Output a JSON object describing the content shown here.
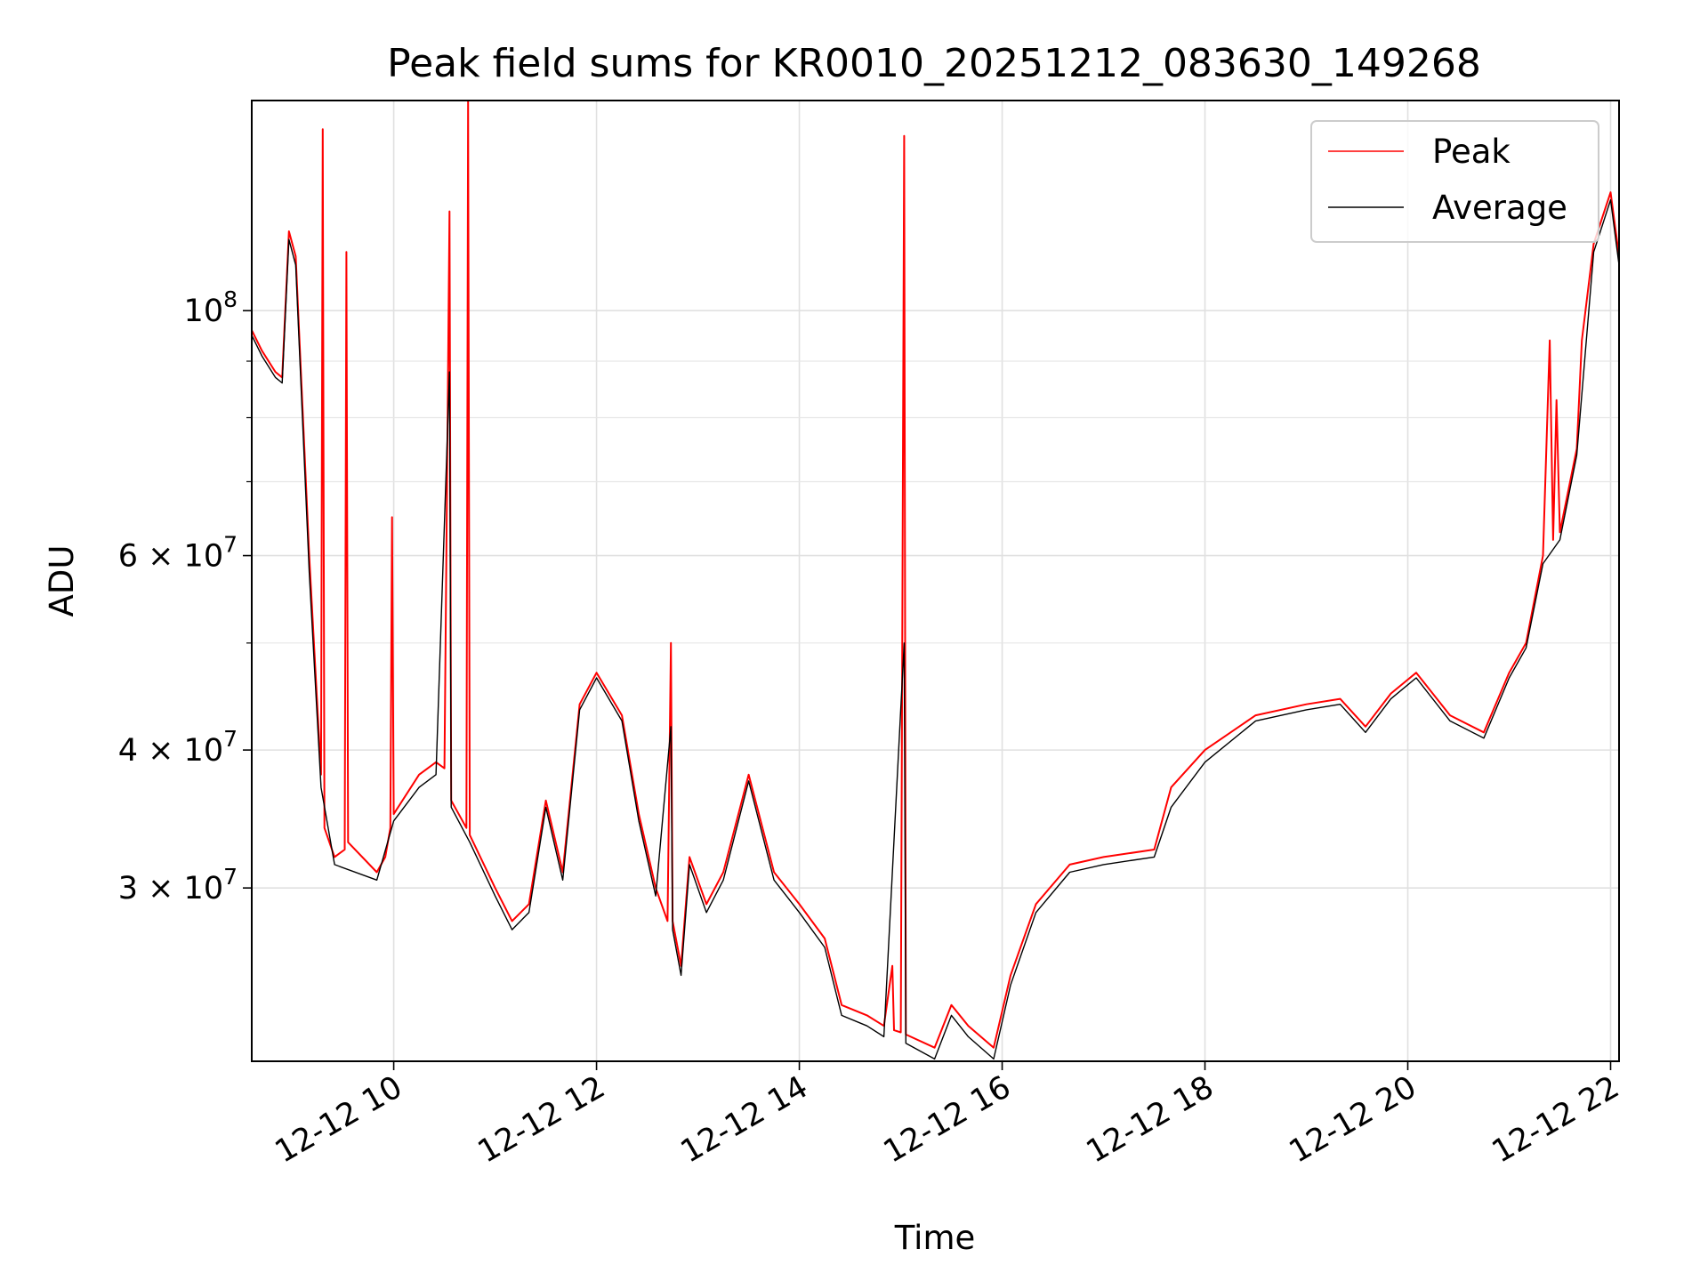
{
  "chart_data": {
    "type": "line",
    "title": "Peak field sums for KR0010_20251212_083630_149268",
    "xlabel": "Time",
    "ylabel": "ADU",
    "y_scale": "log",
    "ylim": [
      20900000,
      155000000
    ],
    "xlim": [
      "2025-12-12 08:36",
      "2025-12-12 22:05"
    ],
    "grid": true,
    "legend": "top-right",
    "x_tick_labels": [
      "12-12 10",
      "12-12 12",
      "12-12 14",
      "12-12 16",
      "12-12 18",
      "12-12 20",
      "12-12 22"
    ],
    "x_ticks": [
      "2025-12-12 10:00",
      "2025-12-12 12:00",
      "2025-12-12 14:00",
      "2025-12-12 16:00",
      "2025-12-12 18:00",
      "2025-12-12 20:00",
      "2025-12-12 22:00"
    ],
    "y_ticks": [
      {
        "value": 30000000,
        "label": "3 × 10",
        "exp": "7"
      },
      {
        "value": 40000000,
        "label": "4 × 10",
        "exp": "7"
      },
      {
        "value": 60000000,
        "label": "6 × 10",
        "exp": "7"
      },
      {
        "value": 100000000,
        "label": "10",
        "exp": "8"
      }
    ],
    "y_minor_ticks": [
      50000000,
      70000000,
      80000000,
      90000000
    ],
    "series": [
      {
        "name": "Peak",
        "color": "#ff0000",
        "points": [
          [
            "2025-12-12 08:36",
            96000000
          ],
          [
            "2025-12-12 08:42",
            92000000
          ],
          [
            "2025-12-12 08:50",
            88000000
          ],
          [
            "2025-12-12 08:54",
            87000000
          ],
          [
            "2025-12-12 08:58",
            118000000
          ],
          [
            "2025-12-12 09:02",
            112000000
          ],
          [
            "2025-12-12 09:10",
            60000000
          ],
          [
            "2025-12-12 09:17",
            38000000
          ],
          [
            "2025-12-12 09:18",
            146000000
          ],
          [
            "2025-12-12 09:19",
            34000000
          ],
          [
            "2025-12-12 09:25",
            32000000
          ],
          [
            "2025-12-12 09:31",
            32500000
          ],
          [
            "2025-12-12 09:32",
            113000000
          ],
          [
            "2025-12-12 09:33",
            33000000
          ],
          [
            "2025-12-12 09:50",
            31000000
          ],
          [
            "2025-12-12 09:55",
            32000000
          ],
          [
            "2025-12-12 09:58",
            34000000
          ],
          [
            "2025-12-12 09:59",
            65000000
          ],
          [
            "2025-12-12 10:00",
            35000000
          ],
          [
            "2025-12-12 10:15",
            38000000
          ],
          [
            "2025-12-12 10:25",
            39000000
          ],
          [
            "2025-12-12 10:30",
            38500000
          ],
          [
            "2025-12-12 10:33",
            123000000
          ],
          [
            "2025-12-12 10:34",
            36000000
          ],
          [
            "2025-12-12 10:43",
            34000000
          ],
          [
            "2025-12-12 10:44",
            155000000
          ],
          [
            "2025-12-12 10:45",
            33500000
          ],
          [
            "2025-12-12 11:00",
            30000000
          ],
          [
            "2025-12-12 11:10",
            28000000
          ],
          [
            "2025-12-12 11:20",
            29000000
          ],
          [
            "2025-12-12 11:30",
            36000000
          ],
          [
            "2025-12-12 11:40",
            31000000
          ],
          [
            "2025-12-12 11:50",
            44000000
          ],
          [
            "2025-12-12 12:00",
            47000000
          ],
          [
            "2025-12-12 12:15",
            43000000
          ],
          [
            "2025-12-12 12:25",
            35000000
          ],
          [
            "2025-12-12 12:35",
            30000000
          ],
          [
            "2025-12-12 12:42",
            28000000
          ],
          [
            "2025-12-12 12:44",
            50000000
          ],
          [
            "2025-12-12 12:45",
            28000000
          ],
          [
            "2025-12-12 12:50",
            25500000
          ],
          [
            "2025-12-12 12:55",
            32000000
          ],
          [
            "2025-12-12 13:05",
            29000000
          ],
          [
            "2025-12-12 13:15",
            31000000
          ],
          [
            "2025-12-12 13:30",
            38000000
          ],
          [
            "2025-12-12 13:45",
            31000000
          ],
          [
            "2025-12-12 14:00",
            29000000
          ],
          [
            "2025-12-12 14:15",
            27000000
          ],
          [
            "2025-12-12 14:25",
            23500000
          ],
          [
            "2025-12-12 14:40",
            23000000
          ],
          [
            "2025-12-12 14:50",
            22500000
          ],
          [
            "2025-12-12 14:55",
            25500000
          ],
          [
            "2025-12-12 14:56",
            22300000
          ],
          [
            "2025-12-12 15:00",
            22200000
          ],
          [
            "2025-12-12 15:02",
            144000000
          ],
          [
            "2025-12-12 15:03",
            22100000
          ],
          [
            "2025-12-12 15:20",
            21500000
          ],
          [
            "2025-12-12 15:30",
            23500000
          ],
          [
            "2025-12-12 15:40",
            22500000
          ],
          [
            "2025-12-12 15:55",
            21500000
          ],
          [
            "2025-12-12 16:05",
            25000000
          ],
          [
            "2025-12-12 16:20",
            29000000
          ],
          [
            "2025-12-12 16:40",
            31500000
          ],
          [
            "2025-12-12 17:00",
            32000000
          ],
          [
            "2025-12-12 17:30",
            32500000
          ],
          [
            "2025-12-12 17:40",
            37000000
          ],
          [
            "2025-12-12 18:00",
            40000000
          ],
          [
            "2025-12-12 18:30",
            43000000
          ],
          [
            "2025-12-12 19:00",
            44000000
          ],
          [
            "2025-12-12 19:20",
            44500000
          ],
          [
            "2025-12-12 19:35",
            42000000
          ],
          [
            "2025-12-12 19:50",
            45000000
          ],
          [
            "2025-12-12 20:05",
            47000000
          ],
          [
            "2025-12-12 20:25",
            43000000
          ],
          [
            "2025-12-12 20:45",
            41500000
          ],
          [
            "2025-12-12 21:00",
            47000000
          ],
          [
            "2025-12-12 21:10",
            50000000
          ],
          [
            "2025-12-12 21:20",
            60000000
          ],
          [
            "2025-12-12 21:24",
            94000000
          ],
          [
            "2025-12-12 21:26",
            62000000
          ],
          [
            "2025-12-12 21:28",
            83000000
          ],
          [
            "2025-12-12 21:30",
            63000000
          ],
          [
            "2025-12-12 21:40",
            75000000
          ],
          [
            "2025-12-12 21:43",
            94000000
          ],
          [
            "2025-12-12 21:50",
            115000000
          ],
          [
            "2025-12-12 22:00",
            128000000
          ],
          [
            "2025-12-12 22:05",
            112000000
          ]
        ]
      },
      {
        "name": "Average",
        "color": "#000000",
        "points": [
          [
            "2025-12-12 08:36",
            95000000
          ],
          [
            "2025-12-12 08:42",
            91000000
          ],
          [
            "2025-12-12 08:50",
            87000000
          ],
          [
            "2025-12-12 08:54",
            86000000
          ],
          [
            "2025-12-12 08:58",
            116000000
          ],
          [
            "2025-12-12 09:02",
            110000000
          ],
          [
            "2025-12-12 09:10",
            58000000
          ],
          [
            "2025-12-12 09:17",
            37000000
          ],
          [
            "2025-12-12 09:25",
            31500000
          ],
          [
            "2025-12-12 09:50",
            30500000
          ],
          [
            "2025-12-12 10:00",
            34500000
          ],
          [
            "2025-12-12 10:15",
            37000000
          ],
          [
            "2025-12-12 10:25",
            38000000
          ],
          [
            "2025-12-12 10:33",
            88000000
          ],
          [
            "2025-12-12 10:34",
            35500000
          ],
          [
            "2025-12-12 10:45",
            33000000
          ],
          [
            "2025-12-12 11:00",
            29500000
          ],
          [
            "2025-12-12 11:10",
            27500000
          ],
          [
            "2025-12-12 11:20",
            28500000
          ],
          [
            "2025-12-12 11:30",
            35500000
          ],
          [
            "2025-12-12 11:40",
            30500000
          ],
          [
            "2025-12-12 11:50",
            43500000
          ],
          [
            "2025-12-12 12:00",
            46500000
          ],
          [
            "2025-12-12 12:15",
            42500000
          ],
          [
            "2025-12-12 12:25",
            34500000
          ],
          [
            "2025-12-12 12:35",
            29500000
          ],
          [
            "2025-12-12 12:44",
            42000000
          ],
          [
            "2025-12-12 12:45",
            27500000
          ],
          [
            "2025-12-12 12:50",
            25000000
          ],
          [
            "2025-12-12 12:55",
            31500000
          ],
          [
            "2025-12-12 13:05",
            28500000
          ],
          [
            "2025-12-12 13:15",
            30500000
          ],
          [
            "2025-12-12 13:30",
            37500000
          ],
          [
            "2025-12-12 13:45",
            30500000
          ],
          [
            "2025-12-12 14:00",
            28500000
          ],
          [
            "2025-12-12 14:15",
            26500000
          ],
          [
            "2025-12-12 14:25",
            23000000
          ],
          [
            "2025-12-12 14:40",
            22500000
          ],
          [
            "2025-12-12 14:50",
            22000000
          ],
          [
            "2025-12-12 15:02",
            50000000
          ],
          [
            "2025-12-12 15:03",
            21700000
          ],
          [
            "2025-12-12 15:20",
            21000000
          ],
          [
            "2025-12-12 15:30",
            23000000
          ],
          [
            "2025-12-12 15:40",
            22000000
          ],
          [
            "2025-12-12 15:55",
            21000000
          ],
          [
            "2025-12-12 16:05",
            24500000
          ],
          [
            "2025-12-12 16:20",
            28500000
          ],
          [
            "2025-12-12 16:40",
            31000000
          ],
          [
            "2025-12-12 17:00",
            31500000
          ],
          [
            "2025-12-12 17:30",
            32000000
          ],
          [
            "2025-12-12 17:40",
            35500000
          ],
          [
            "2025-12-12 18:00",
            39000000
          ],
          [
            "2025-12-12 18:30",
            42500000
          ],
          [
            "2025-12-12 19:00",
            43500000
          ],
          [
            "2025-12-12 19:20",
            44000000
          ],
          [
            "2025-12-12 19:35",
            41500000
          ],
          [
            "2025-12-12 19:50",
            44500000
          ],
          [
            "2025-12-12 20:05",
            46500000
          ],
          [
            "2025-12-12 20:25",
            42500000
          ],
          [
            "2025-12-12 20:45",
            41000000
          ],
          [
            "2025-12-12 21:00",
            46500000
          ],
          [
            "2025-12-12 21:10",
            49500000
          ],
          [
            "2025-12-12 21:20",
            59000000
          ],
          [
            "2025-12-12 21:30",
            62000000
          ],
          [
            "2025-12-12 21:40",
            74000000
          ],
          [
            "2025-12-12 21:50",
            113000000
          ],
          [
            "2025-12-12 22:00",
            126000000
          ],
          [
            "2025-12-12 22:05",
            110000000
          ]
        ]
      }
    ]
  }
}
